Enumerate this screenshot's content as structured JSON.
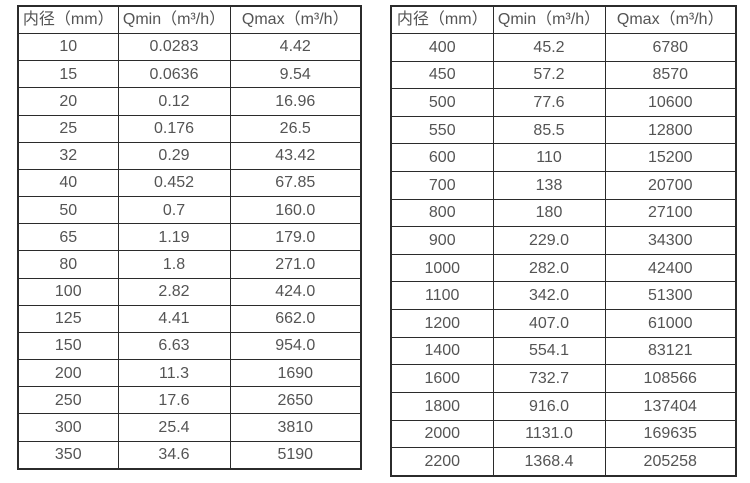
{
  "page": {
    "background": "#ffffff"
  },
  "colors": {
    "border": "#2b2b2b",
    "text": "#545454",
    "cell_background": "#ffffff"
  },
  "tables": [
    {
      "name": "flow-rate-table-small-diameters",
      "headers": [
        "内径（mm）",
        "Qmin（m³/h）",
        "Qmax（m³/h）"
      ],
      "rows": [
        [
          "10",
          "0.0283",
          "4.42"
        ],
        [
          "15",
          "0.0636",
          "9.54"
        ],
        [
          "20",
          "0.12",
          "16.96"
        ],
        [
          "25",
          "0.176",
          "26.5"
        ],
        [
          "32",
          "0.29",
          "43.42"
        ],
        [
          "40",
          "0.452",
          "67.85"
        ],
        [
          "50",
          "0.7",
          "160.0"
        ],
        [
          "65",
          "1.19",
          "179.0"
        ],
        [
          "80",
          "1.8",
          "271.0"
        ],
        [
          "100",
          "2.82",
          "424.0"
        ],
        [
          "125",
          "4.41",
          "662.0"
        ],
        [
          "150",
          "6.63",
          "954.0"
        ],
        [
          "200",
          "11.3",
          "1690"
        ],
        [
          "250",
          "17.6",
          "2650"
        ],
        [
          "300",
          "25.4",
          "3810"
        ],
        [
          "350",
          "34.6",
          "5190"
        ]
      ]
    },
    {
      "name": "flow-rate-table-large-diameters",
      "headers": [
        "内径（mm）",
        "Qmin（m³/h）",
        "Qmax（m³/h）"
      ],
      "rows": [
        [
          "400",
          "45.2",
          "6780"
        ],
        [
          "450",
          "57.2",
          "8570"
        ],
        [
          "500",
          "77.6",
          "10600"
        ],
        [
          "550",
          "85.5",
          "12800"
        ],
        [
          "600",
          "110",
          "15200"
        ],
        [
          "700",
          "138",
          "20700"
        ],
        [
          "800",
          "180",
          "27100"
        ],
        [
          "900",
          "229.0",
          "34300"
        ],
        [
          "1000",
          "282.0",
          "42400"
        ],
        [
          "1100",
          "342.0",
          "51300"
        ],
        [
          "1200",
          "407.0",
          "61000"
        ],
        [
          "1400",
          "554.1",
          "83121"
        ],
        [
          "1600",
          "732.7",
          "108566"
        ],
        [
          "1800",
          "916.0",
          "137404"
        ],
        [
          "2000",
          "1131.0",
          "169635"
        ],
        [
          "2200",
          "1368.4",
          "205258"
        ]
      ]
    }
  ]
}
